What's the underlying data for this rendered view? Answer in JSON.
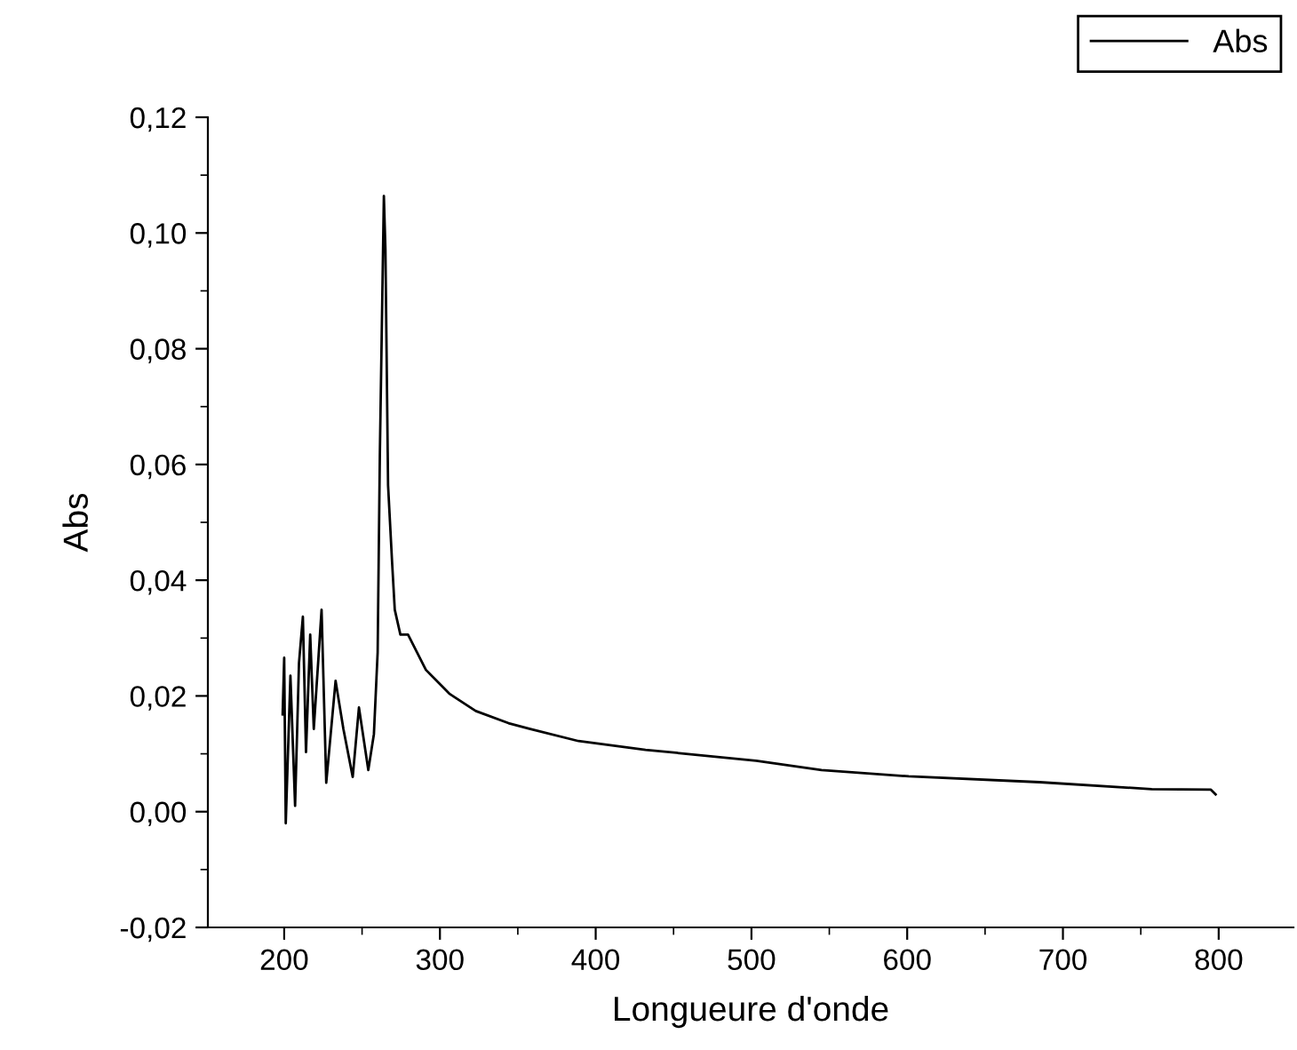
{
  "chart_data": {
    "type": "line",
    "xlabel": "Longueure d'onde",
    "ylabel": "Abs",
    "xlim": [
      151,
      848
    ],
    "xticks": [
      200,
      300,
      400,
      500,
      600,
      700,
      800
    ],
    "ylim": [
      -0.02,
      0.12
    ],
    "yticks": [
      {
        "value": -0.02,
        "label": "-0,02"
      },
      {
        "value": 0,
        "label": "0,00"
      },
      {
        "value": 0.02,
        "label": "0,02"
      },
      {
        "value": 0.04,
        "label": "0,04"
      },
      {
        "value": 0.06,
        "label": "0,06"
      },
      {
        "value": 0.08,
        "label": "0,08"
      },
      {
        "value": 0.1,
        "label": "0,10"
      },
      {
        "value": 0.12,
        "label": "0,12"
      }
    ],
    "grid": false,
    "legend": "top right",
    "marker": "none",
    "line_style": "solid",
    "series": [
      {
        "name": "Abs",
        "color": "#000000",
        "x": [
          199,
          200,
          201,
          204,
          207,
          209.5,
          212,
          214,
          216.7,
          219,
          222,
          224,
          227,
          233,
          238,
          244,
          248,
          254,
          257.6,
          260,
          261.4,
          264,
          265,
          266.7,
          269.3,
          271,
          274.6,
          279.5,
          291,
          306,
          323,
          344,
          358,
          389,
          432,
          503,
          545,
          601,
          685,
          757,
          795,
          798
        ],
        "values": [
          0.0168,
          0.0266,
          -0.002,
          0.0235,
          0.001,
          0.0257,
          0.0337,
          0.0103,
          0.0306,
          0.0143,
          0.0266,
          0.0349,
          0.005,
          0.0226,
          0.0143,
          0.006,
          0.018,
          0.0072,
          0.0134,
          0.0275,
          0.0613,
          0.1064,
          0.0972,
          0.0564,
          0.043,
          0.0349,
          0.0306,
          0.0306,
          0.0245,
          0.0204,
          0.0174,
          0.0153,
          0.0143,
          0.0122,
          0.0107,
          0.0088,
          0.0072,
          0.0061,
          0.0051,
          0.0039,
          0.0038,
          0.003
        ]
      }
    ]
  }
}
